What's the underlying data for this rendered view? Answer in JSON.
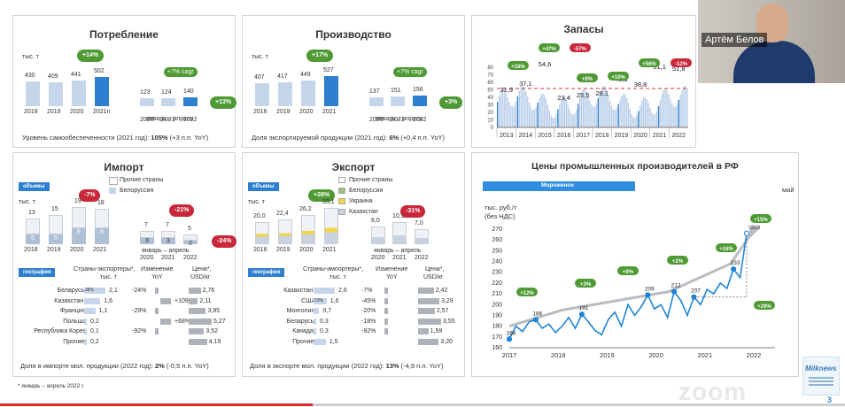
{
  "consumption": {
    "title": "Потребление",
    "unit": "тыс. т",
    "growth": "+14%",
    "bars": [
      {
        "year": "2018",
        "value": "430"
      },
      {
        "year": "2019",
        "value": "409"
      },
      {
        "year": "2020",
        "value": "441"
      },
      {
        "year": "2021n",
        "value": "502"
      }
    ],
    "q_bars": [
      {
        "year": "2020",
        "value": "123"
      },
      {
        "year": "2021",
        "value": "124"
      },
      {
        "year": "2022",
        "value": "140"
      }
    ],
    "q_label": "январь – апрель",
    "cagr": "+7% cagr",
    "q_growth": "+13%",
    "footer_text": "Уровень самообеспеченности (2021 год):",
    "footer_value": "105%",
    "footer_delta": "(+3 п.п. YoY)"
  },
  "production": {
    "title": "Производство",
    "unit": "тыс. т",
    "growth": "+17%",
    "bars": [
      {
        "year": "2016",
        "value": "407"
      },
      {
        "year": "2019",
        "value": "417"
      },
      {
        "year": "2020",
        "value": "449"
      },
      {
        "year": "2021",
        "value": "527"
      }
    ],
    "q_bars": [
      {
        "year": "2020",
        "value": "137"
      },
      {
        "year": "2021",
        "value": "151"
      },
      {
        "year": "2022",
        "value": "156"
      }
    ],
    "q_label": "январь – апрель",
    "cagr": "+7% cagr",
    "q_growth": "+3%",
    "footer_text": "Доля экспортируемой продукции (2021 год):",
    "footer_value": "6%",
    "footer_delta": "(+0,4 п.п. YoY)"
  },
  "stocks": {
    "title": "Запасы",
    "yaxis": [
      "80",
      "70",
      "60",
      "50",
      "40",
      "30",
      "20",
      "10",
      "0"
    ],
    "years": [
      "2013",
      "2014",
      "2015",
      "2016",
      "2017",
      "2018",
      "2019",
      "2020",
      "2021",
      "2022"
    ],
    "values": [
      "31,9",
      "37,1",
      "54,6",
      "23,4",
      "25,5",
      "28,1",
      "43,9",
      "38,8",
      "51,1",
      "51,8"
    ],
    "pills": [
      {
        "text": "+16%",
        "color": "g"
      },
      {
        "text": "+47%",
        "color": "g"
      },
      {
        "text": "-57%",
        "color": "r"
      },
      {
        "text": "+9%",
        "color": "g"
      },
      {
        "text": "+10%",
        "color": "g"
      },
      {
        "text": "+56%",
        "color": "g"
      },
      {
        "text": "-12%",
        "color": "r"
      },
      {
        "text": "+32%",
        "color": "g"
      },
      {
        "text": "+1%",
        "color": "g"
      }
    ]
  },
  "imports": {
    "title": "Импорт",
    "volumes_tag": "объемы",
    "legend_other": "Прочие страны",
    "legend_by": "Белоруссия",
    "unit": "тыс. т",
    "growth": "-7%",
    "q_growth": "-21%",
    "q_growth2": "-24%",
    "bars": [
      {
        "year": "2018",
        "total": "13",
        "by": "5"
      },
      {
        "year": "2019",
        "total": "15",
        "by": "5"
      },
      {
        "year": "2020",
        "total": "19",
        "by": "8"
      },
      {
        "year": "2021",
        "total": "18",
        "by": "8"
      }
    ],
    "q_bars": [
      {
        "year": "2020",
        "total": "7",
        "by": "3"
      },
      {
        "year": "2021",
        "total": "7",
        "by": "3"
      },
      {
        "year": "2022",
        "total": "5",
        "by": "2"
      }
    ],
    "q_label": "январь – апрель",
    "geo_tag": "география",
    "col_countries": "Страны-экспортеры*,",
    "col_countries_unit": "тыс. т",
    "col_change": "Изменение",
    "col_change_unit": "YoY",
    "col_price": "Цена*,",
    "col_price_unit": "USD/кг",
    "rows": [
      {
        "country": "Беларусь",
        "share": "38%",
        "value": "2,1",
        "change": "-24%",
        "price": "2,76"
      },
      {
        "country": "Казахстан",
        "share": "",
        "value": "1,6",
        "change": "+109%",
        "price": "2,11"
      },
      {
        "country": "Франция",
        "share": "",
        "value": "1,1",
        "change": "-29%",
        "price": "3,95"
      },
      {
        "country": "Польша",
        "share": "",
        "value": "0,2",
        "change": "+68%",
        "price": "5,27"
      },
      {
        "country": "Республика Корея",
        "share": "",
        "value": "0,1",
        "change": "-92%",
        "price": "3,52"
      },
      {
        "country": "Прочие",
        "share": "",
        "value": "0,2",
        "change": "",
        "price": "4,19"
      }
    ],
    "footer_text": "Доля в импорте мол. продукции (2022 год):",
    "footer_value": "2%",
    "footer_delta": "(-0,5 п.п. YoY)"
  },
  "exports": {
    "title": "Экспорт",
    "volumes_tag": "объемы",
    "legend": [
      "Прочие страны",
      "Белоруссия",
      "Украина",
      "Казахстан"
    ],
    "unit": "тыс. т",
    "growth": "+26%",
    "q_growth": "-31%",
    "bars": [
      {
        "year": "2018",
        "value": "20,0"
      },
      {
        "year": "2019",
        "value": "22,4"
      },
      {
        "year": "2020",
        "value": "26,2"
      },
      {
        "year": "2021",
        "value": "33,1"
      }
    ],
    "q_bars": [
      {
        "year": "2020",
        "value": "8,0"
      },
      {
        "year": "2021",
        "value": "10,1"
      },
      {
        "year": "2022",
        "value": "7,0"
      }
    ],
    "q_label": "январь – апрель",
    "geo_tag": "география",
    "col_countries": "Страны-импортеры*,",
    "col_countries_unit": "тыс. т",
    "col_change": "Изменение",
    "col_change_unit": "YoY",
    "col_price": "Цена*,",
    "col_price_unit": "USD/кг",
    "rows": [
      {
        "country": "Казахстан",
        "share": "",
        "value": "2,6",
        "change": "-7%",
        "price": "2,42"
      },
      {
        "country": "США",
        "share": "23%",
        "value": "1,6",
        "change": "-45%",
        "price": "3,29"
      },
      {
        "country": "Монголия",
        "share": "",
        "value": "0,7",
        "change": "-20%",
        "price": "2,57"
      },
      {
        "country": "Беларусь",
        "share": "",
        "value": "0,3",
        "change": "-18%",
        "price": "3,55"
      },
      {
        "country": "Канада",
        "share": "",
        "value": "0,3",
        "change": "-92%",
        "price": "1,59"
      },
      {
        "country": "Прочие",
        "share": "",
        "value": "1,5",
        "change": "",
        "price": "3,20"
      }
    ],
    "footer_text": "Доля в экспорте мол. продукции (2022 год):",
    "footer_value": "13%",
    "footer_delta": "(-4,9 п.п. YoY)"
  },
  "prices": {
    "title": "Цены промышленных производителей в РФ",
    "tab": "Мороженое",
    "month": "май",
    "unit": "тыс. руб./т",
    "unit2": "(без НДС)",
    "yaxis": [
      "270",
      "260",
      "250",
      "240",
      "230",
      "220",
      "210",
      "200",
      "190",
      "180",
      "170",
      "160"
    ],
    "years": [
      "2017",
      "2018",
      "2019",
      "2020",
      "2021",
      "2022"
    ],
    "points": [
      "168",
      "186",
      "191",
      "209",
      "212",
      "207",
      "233",
      "266"
    ],
    "pills": [
      "+12%",
      "+3%",
      "+9%",
      "+2%",
      "+16%",
      "+15%",
      "+29%"
    ]
  },
  "footnote": "* январь – апрель 2022 г.",
  "video": {
    "name": "Артём Белов"
  },
  "page_number": "3",
  "logo": "Milknews",
  "watermark": "zoom",
  "chart_data": [
    {
      "type": "bar",
      "title": "Потребление",
      "categories": [
        "2018",
        "2019",
        "2020",
        "2021n"
      ],
      "values": [
        430,
        409,
        441,
        502
      ],
      "ylabel": "тыс. т"
    },
    {
      "type": "bar",
      "title": "Производство",
      "categories": [
        "2016",
        "2019",
        "2020",
        "2021"
      ],
      "values": [
        407,
        417,
        449,
        527
      ],
      "ylabel": "тыс. т"
    },
    {
      "type": "bar",
      "title": "Запасы",
      "categories": [
        "2013",
        "2014",
        "2015",
        "2016",
        "2017",
        "2018",
        "2019",
        "2020",
        "2021",
        "2022"
      ],
      "values": [
        31.9,
        37.1,
        54.6,
        23.4,
        25.5,
        28.1,
        43.9,
        38.8,
        51.1,
        51.8
      ],
      "ylim": [
        0,
        80
      ]
    },
    {
      "type": "bar",
      "title": "Импорт",
      "categories": [
        "2018",
        "2019",
        "2020",
        "2021"
      ],
      "values": [
        13,
        15,
        19,
        18
      ],
      "ylabel": "тыс. т"
    },
    {
      "type": "bar",
      "title": "Экспорт",
      "categories": [
        "2018",
        "2019",
        "2020",
        "2021"
      ],
      "values": [
        20.0,
        22.4,
        26.2,
        33.1
      ],
      "ylabel": "тыс. т"
    },
    {
      "type": "line",
      "title": "Цены промышленных производителей в РФ",
      "ylabel": "тыс. руб./т",
      "ylim": [
        160,
        270
      ],
      "x": [
        "2017",
        "2018",
        "2019",
        "2020",
        "2021",
        "2022"
      ],
      "series": [
        {
          "name": "Мороженое",
          "values": [
            168,
            186,
            191,
            209,
            212,
            233
          ]
        }
      ]
    }
  ]
}
